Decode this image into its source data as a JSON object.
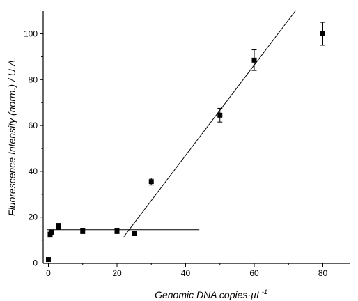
{
  "chart_data": {
    "type": "scatter",
    "xlabel": "Genomic DNA copies·µL",
    "xlabel_superscript": "-1",
    "ylabel": "Fluorescence Intensity (norm.) / U.A.",
    "xlim": [
      -1,
      90
    ],
    "ylim": [
      0,
      110
    ],
    "x_ticks": [
      0,
      20,
      40,
      60,
      80
    ],
    "y_ticks": [
      0,
      20,
      40,
      60,
      80,
      100
    ],
    "grid": false,
    "legend": "none",
    "marker": "square",
    "color": "#000000",
    "points": [
      {
        "x": 0,
        "y": 1.5,
        "err": 0
      },
      {
        "x": 0.5,
        "y": 12.5,
        "err": 1.0
      },
      {
        "x": 1,
        "y": 13.5,
        "err": 1.0
      },
      {
        "x": 3,
        "y": 16.0,
        "err": 1.3
      },
      {
        "x": 10,
        "y": 14.0,
        "err": 1.2
      },
      {
        "x": 20,
        "y": 14.0,
        "err": 1.2
      },
      {
        "x": 25,
        "y": 13.0,
        "err": 0.8
      },
      {
        "x": 30,
        "y": 35.5,
        "err": 1.5
      },
      {
        "x": 50,
        "y": 64.5,
        "err": 3.0
      },
      {
        "x": 60,
        "y": 88.5,
        "err": 4.5
      },
      {
        "x": 80,
        "y": 100.0,
        "err": 5.0
      }
    ],
    "fit_lines": [
      {
        "x": [
          -0.5,
          44
        ],
        "y": [
          14.5,
          14.5
        ]
      },
      {
        "x": [
          22,
          72
        ],
        "y": [
          11.5,
          110
        ]
      }
    ]
  }
}
